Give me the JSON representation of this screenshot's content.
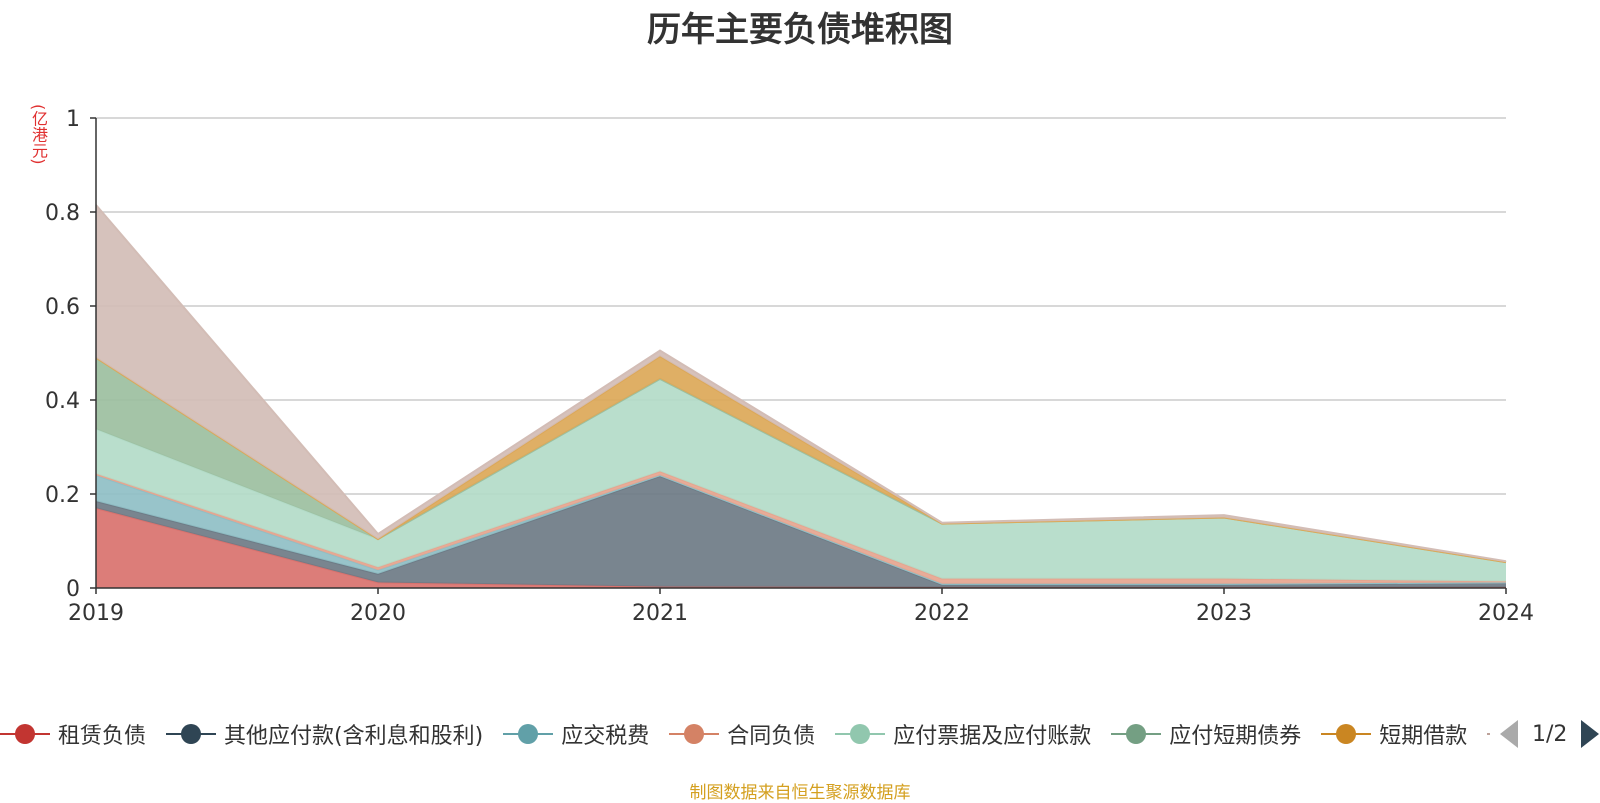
{
  "chart_data": {
    "type": "area",
    "title": "历年主要负债堆积图",
    "unit_label": "(亿港元)",
    "source": "制图数据来自恒生聚源数据库",
    "pager": "1/2",
    "stacked": true,
    "legend_position": "bottom",
    "grid": true,
    "x": [
      "2019",
      "2020",
      "2021",
      "2022",
      "2023",
      "2024"
    ],
    "y_ticks": [
      "0",
      "0.2",
      "0.4",
      "0.6",
      "0.8",
      "1"
    ],
    "ylim": [
      0,
      1
    ],
    "series": [
      {
        "name": "租赁负债",
        "color": "#c23531",
        "fill": "#d9726e",
        "values": [
          0.17,
          0.012,
          0.003,
          0.002,
          0.002,
          0.002
        ]
      },
      {
        "name": "其他应付款(含利息和股利)",
        "color": "#2f4554",
        "fill": "#6e7b86",
        "values": [
          0.015,
          0.018,
          0.235,
          0.005,
          0.005,
          0.01
        ]
      },
      {
        "name": "应交税费",
        "color": "#61a0a8",
        "fill": "#8fbfc6",
        "values": [
          0.055,
          0.008,
          0.002,
          0.002,
          0.002,
          0.0
        ]
      },
      {
        "name": "合同负债",
        "color": "#d48265",
        "fill": "#e6a58f",
        "values": [
          0.003,
          0.006,
          0.008,
          0.011,
          0.011,
          0.002
        ]
      },
      {
        "name": "应付票据及应付账款",
        "color": "#91c7ae",
        "fill": "#b3dbc8",
        "values": [
          0.095,
          0.06,
          0.197,
          0.117,
          0.13,
          0.041
        ]
      },
      {
        "name": "应付短期债券",
        "color": "#749f83",
        "fill": "#9cbf9f",
        "values": [
          0.152,
          0.0,
          0.0,
          0.0,
          0.0,
          0.0
        ]
      },
      {
        "name": "短期借款",
        "color": "#ca8622",
        "fill": "#dca858",
        "values": [
          0.0,
          0.0,
          0.048,
          0.0,
          0.0,
          0.0
        ]
      },
      {
        "name": "",
        "color": "#bda29a",
        "fill": "#d3bdb6",
        "values": [
          0.325,
          0.011,
          0.012,
          0.002,
          0.005,
          0.002
        ]
      }
    ]
  }
}
